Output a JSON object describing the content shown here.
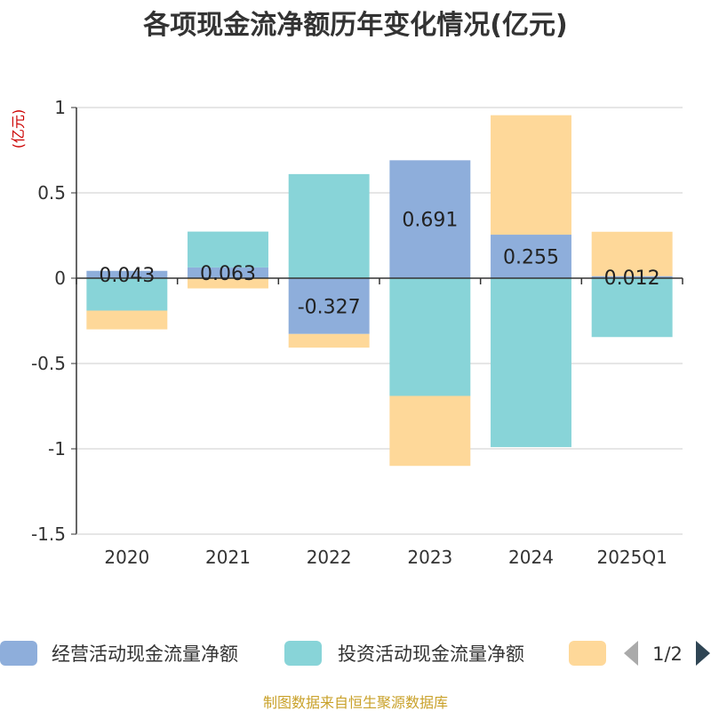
{
  "chart_data": {
    "type": "bar",
    "stacked": true,
    "title": "各项现金流净额历年变化情况(亿元)",
    "ylabel": "(亿元)",
    "ylim": [
      -1.5,
      1
    ],
    "yticks": [
      "1",
      "0.5",
      "0",
      "-0.5",
      "-1",
      "-1.5"
    ],
    "ytick_values": [
      1,
      0.5,
      0,
      -0.5,
      -1,
      -1.5
    ],
    "grid": true,
    "categories": [
      "2020",
      "2021",
      "2022",
      "2023",
      "2024",
      "2025Q1"
    ],
    "series": [
      {
        "name": "经营活动现金流量净额",
        "color": "#8eaedb",
        "values": [
          0.043,
          0.063,
          -0.327,
          0.691,
          0.255,
          0.012
        ],
        "labels": [
          "0.043",
          "0.063",
          "-0.327",
          "0.691",
          "0.255",
          "0.012"
        ]
      },
      {
        "name": "投资活动现金流量净额",
        "color": "#88d4d8",
        "values": [
          -0.19,
          0.21,
          0.61,
          -0.69,
          -0.99,
          -0.345
        ]
      },
      {
        "name": "",
        "color": "#fed899",
        "values": [
          -0.11,
          -0.06,
          -0.08,
          -0.41,
          0.7,
          0.26
        ]
      }
    ],
    "legend": {
      "placement": "bottom",
      "page": "1/2"
    },
    "source": "制图数据来自恒生聚源数据库"
  }
}
